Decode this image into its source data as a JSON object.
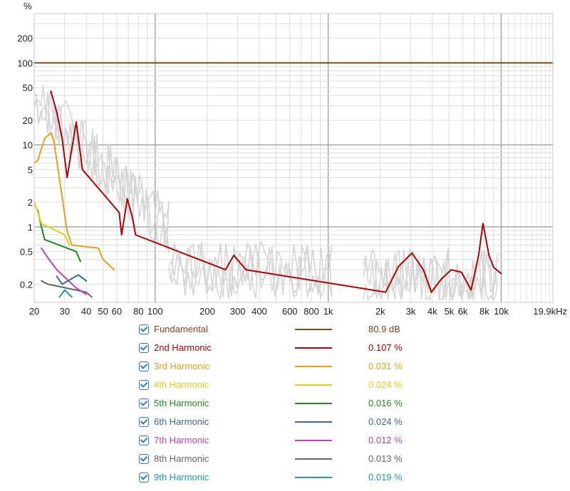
{
  "chart_data": {
    "type": "line",
    "ylabel": "%",
    "xunit": "Hz",
    "xscale": "log",
    "yscale": "log",
    "xlim": [
      20,
      19900
    ],
    "ylim": [
      0.12,
      400
    ],
    "grid": true,
    "x_ticks": [
      {
        "v": 20,
        "label": "20"
      },
      {
        "v": 30,
        "label": "30"
      },
      {
        "v": 40,
        "label": "40"
      },
      {
        "v": 50,
        "label": "50"
      },
      {
        "v": 60,
        "label": "60"
      },
      {
        "v": 80,
        "label": "80"
      },
      {
        "v": 100,
        "label": "100"
      },
      {
        "v": 200,
        "label": "200"
      },
      {
        "v": 300,
        "label": "300"
      },
      {
        "v": 400,
        "label": "400"
      },
      {
        "v": 600,
        "label": "600"
      },
      {
        "v": 800,
        "label": "800"
      },
      {
        "v": 1000,
        "label": "1k"
      },
      {
        "v": 2000,
        "label": "2k"
      },
      {
        "v": 3000,
        "label": "3k"
      },
      {
        "v": 4000,
        "label": "4k"
      },
      {
        "v": 5000,
        "label": "5k"
      },
      {
        "v": 6000,
        "label": "6k"
      },
      {
        "v": 8000,
        "label": "8k"
      },
      {
        "v": 10000,
        "label": "10k"
      },
      {
        "v": 19900,
        "label": "19.9kHz"
      }
    ],
    "y_ticks": [
      {
        "v": 200,
        "label": "200"
      },
      {
        "v": 100,
        "label": "100"
      },
      {
        "v": 50,
        "label": "50"
      },
      {
        "v": 20,
        "label": "20"
      },
      {
        "v": 10,
        "label": "10"
      },
      {
        "v": 5,
        "label": "5"
      },
      {
        "v": 2,
        "label": "2"
      },
      {
        "v": 1,
        "label": "1"
      },
      {
        "v": 0.5,
        "label": "0.5"
      },
      {
        "v": 0.2,
        "label": "0.2"
      }
    ],
    "series": [
      {
        "name": "Fundamental",
        "color": "#8b4513",
        "value": "80.9 dB",
        "points": [
          [
            20,
            100
          ],
          [
            10000,
            100
          ],
          [
            19900,
            100
          ]
        ]
      },
      {
        "name": "2nd Harmonic",
        "color": "#b30000",
        "value": "0.107 %",
        "points": [
          [
            25,
            45
          ],
          [
            27,
            25
          ],
          [
            29,
            12
          ],
          [
            31,
            4
          ],
          [
            33,
            9
          ],
          [
            35,
            19
          ],
          [
            38,
            5
          ],
          [
            62,
            1.5
          ],
          [
            64,
            0.8
          ],
          [
            69,
            2.2
          ],
          [
            74,
            1.3
          ],
          [
            77,
            0.8
          ],
          [
            255,
            0.3
          ],
          [
            285,
            0.45
          ],
          [
            335,
            0.3
          ],
          [
            2150,
            0.16
          ],
          [
            2550,
            0.33
          ],
          [
            3050,
            0.48
          ],
          [
            3550,
            0.3
          ],
          [
            3950,
            0.16
          ],
          [
            4500,
            0.23
          ],
          [
            5150,
            0.3
          ],
          [
            5900,
            0.28
          ],
          [
            6700,
            0.17
          ],
          [
            7400,
            0.45
          ],
          [
            7850,
            1.1
          ],
          [
            8500,
            0.45
          ],
          [
            9050,
            0.32
          ],
          [
            10000,
            0.27
          ]
        ]
      },
      {
        "name": "3rd Harmonic",
        "color": "#e6a117",
        "value": "0.031 %",
        "points": [
          [
            20,
            6
          ],
          [
            21,
            6.5
          ],
          [
            23,
            12
          ],
          [
            24,
            13
          ],
          [
            25,
            14
          ],
          [
            26,
            11
          ],
          [
            31,
            0.9
          ],
          [
            33,
            0.6
          ],
          [
            47,
            0.55
          ],
          [
            50,
            0.4
          ],
          [
            58,
            0.3
          ]
        ]
      },
      {
        "name": "4th Harmonic",
        "color": "#e0d010",
        "value": "0.024 %",
        "points": [
          [
            20,
            2
          ],
          [
            21,
            1.5
          ],
          [
            22,
            1.1
          ],
          [
            30,
            0.8
          ],
          [
            32,
            0.6
          ]
        ]
      },
      {
        "name": "5th Harmonic",
        "color": "#1e8c1e",
        "value": "0.016 %",
        "points": [
          [
            21,
            1.6
          ],
          [
            22,
            1.0
          ],
          [
            23,
            0.7
          ],
          [
            35,
            0.5
          ],
          [
            37,
            0.38
          ]
        ]
      },
      {
        "name": "6th Harmonic",
        "color": "#3a66a8",
        "value": "0.024 %",
        "points": [
          [
            27,
            0.25
          ],
          [
            29,
            0.2
          ],
          [
            36,
            0.26
          ],
          [
            40,
            0.22
          ]
        ]
      },
      {
        "name": "7th Harmonic",
        "color": "#c03fc0",
        "value": "0.012 %",
        "points": [
          [
            22,
            0.55
          ],
          [
            24,
            0.42
          ],
          [
            27,
            0.3
          ],
          [
            35,
            0.18
          ],
          [
            40,
            0.15
          ]
        ]
      },
      {
        "name": "8th Harmonic",
        "color": "#666666",
        "value": "0.013 %",
        "points": [
          [
            22,
            0.22
          ],
          [
            24,
            0.2
          ],
          [
            40,
            0.16
          ],
          [
            43,
            0.14
          ]
        ]
      },
      {
        "name": "9th Harmonic",
        "color": "#1a9e9e",
        "value": "0.019 %",
        "points": [
          [
            28,
            0.14
          ],
          [
            30,
            0.17
          ],
          [
            33,
            0.14
          ]
        ]
      }
    ]
  }
}
